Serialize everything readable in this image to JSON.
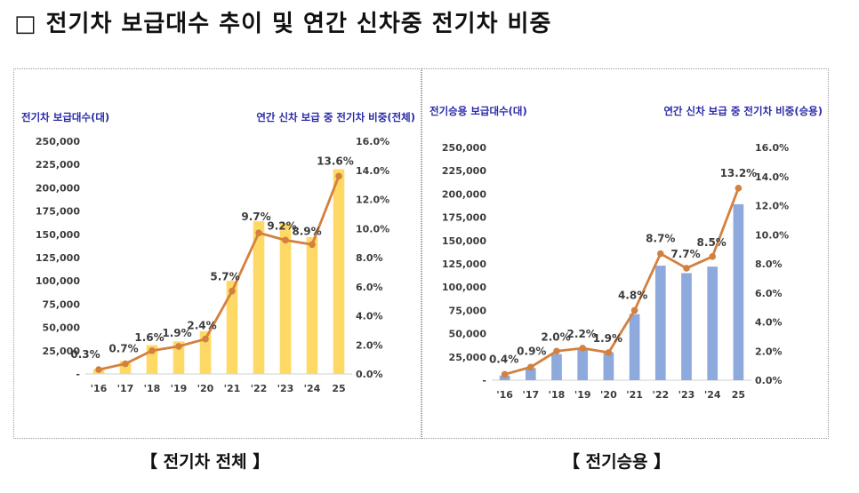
{
  "title": "□ 전기차 보급대수 추이 및 연간 신차중 전기차 비중",
  "captions": {
    "left": "【 전기차 전체 】",
    "right": "【 전기승용 】"
  },
  "colors": {
    "bar_left": "#FFD966",
    "bar_right": "#8EA9DB",
    "line": "#D4803E",
    "axis_label": "#2A2AA8"
  },
  "chart_data": [
    {
      "type": "bar+line",
      "name": "전기차 전체",
      "categories": [
        "'16",
        "'17",
        "'18",
        "'19",
        "'20",
        "'21",
        "'22",
        "'23",
        "'24",
        "25"
      ],
      "ylabel_left": "전기차 보급대수(대)",
      "ylabel_right": "연간 신차 보급 중 전기차 비중(전체)",
      "yticks_left": [
        "-",
        "25,000",
        "50,000",
        "75,000",
        "100,000",
        "125,000",
        "150,000",
        "175,000",
        "200,000",
        "225,000",
        "250,000"
      ],
      "yticks_right": [
        "0.0%",
        "2.0%",
        "4.0%",
        "6.0%",
        "8.0%",
        "10.0%",
        "12.0%",
        "14.0%",
        "16.0%"
      ],
      "ylim_left": [
        0,
        250000
      ],
      "ylim_right": [
        0,
        16
      ],
      "series": [
        {
          "name": "보급대수",
          "kind": "bar",
          "values": [
            5000,
            14000,
            31000,
            35000,
            46000,
            100000,
            164000,
            162000,
            147000,
            220000
          ]
        },
        {
          "name": "비중",
          "kind": "line",
          "values": [
            0.3,
            0.7,
            1.6,
            1.9,
            2.4,
            5.7,
            9.7,
            9.2,
            8.9,
            13.6
          ],
          "labels": [
            "0.3%",
            "0.7%",
            "1.6%",
            "1.9%",
            "2.4%",
            "5.7%",
            "9.7%",
            "9.2%",
            "8.9%",
            "13.6%"
          ]
        }
      ]
    },
    {
      "type": "bar+line",
      "name": "전기승용",
      "categories": [
        "'16",
        "'17",
        "'18",
        "'19",
        "'20",
        "'21",
        "'22",
        "'23",
        "'24",
        "25"
      ],
      "ylabel_left": "전기승용 보급대수(대)",
      "ylabel_right": "연간 신차 보급 중 전기차 비중(승용)",
      "yticks_left": [
        "-",
        "25,000",
        "50,000",
        "75,000",
        "100,000",
        "125,000",
        "150,000",
        "175,000",
        "200,000",
        "225,000",
        "250,000"
      ],
      "yticks_right": [
        "0.0%",
        "2.0%",
        "4.0%",
        "6.0%",
        "8.0%",
        "10.0%",
        "12.0%",
        "14.0%",
        "16.0%"
      ],
      "ylim_left": [
        0,
        250000
      ],
      "ylim_right": [
        0,
        16
      ],
      "series": [
        {
          "name": "보급대수",
          "kind": "bar",
          "values": [
            5000,
            13000,
            28000,
            33000,
            30000,
            71000,
            123000,
            115000,
            122000,
            189000
          ]
        },
        {
          "name": "비중",
          "kind": "line",
          "values": [
            0.4,
            0.9,
            2.0,
            2.2,
            1.9,
            4.8,
            8.7,
            7.7,
            8.5,
            13.2
          ],
          "labels": [
            "0.4%",
            "0.9%",
            "2.0%",
            "2.2%",
            "1.9%",
            "4.8%",
            "8.7%",
            "7.7%",
            "8.5%",
            "13.2%"
          ]
        }
      ]
    }
  ]
}
